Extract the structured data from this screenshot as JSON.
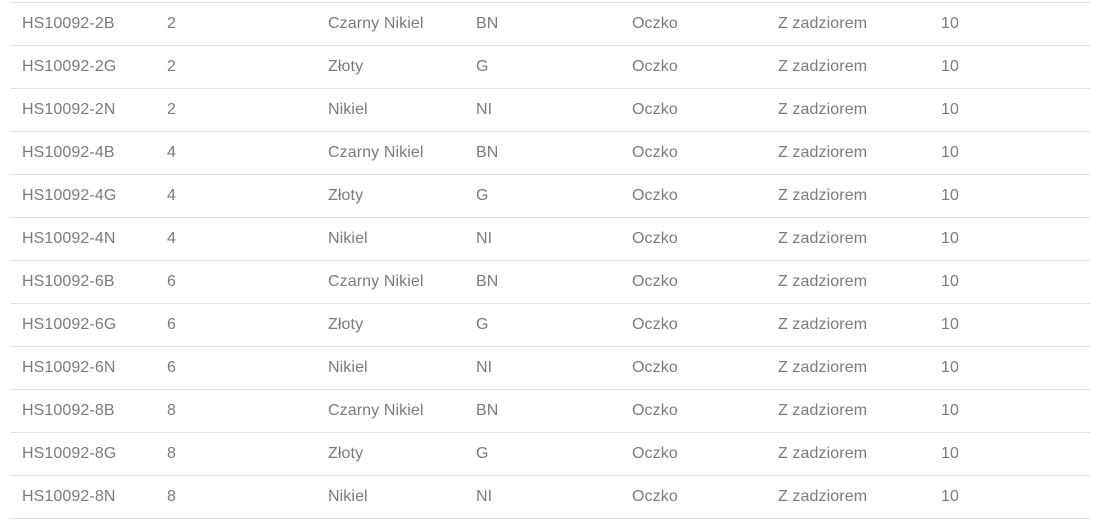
{
  "style": {
    "text_color": "#7b7b7b",
    "border_color": "#e0e0e0",
    "background": "#ffffff"
  },
  "table": {
    "column_keys": [
      "symbol",
      "size",
      "color_name",
      "color_code",
      "shape",
      "barb",
      "quantity"
    ],
    "rows": [
      {
        "symbol": "HS10092-2B",
        "size": "2",
        "color_name": "Czarny Nikiel",
        "color_code": "BN",
        "shape": "Oczko",
        "barb": "Z zadziorem",
        "quantity": "10"
      },
      {
        "symbol": "HS10092-2G",
        "size": "2",
        "color_name": "Złoty",
        "color_code": "G",
        "shape": "Oczko",
        "barb": "Z zadziorem",
        "quantity": "10"
      },
      {
        "symbol": "HS10092-2N",
        "size": "2",
        "color_name": "Nikiel",
        "color_code": "NI",
        "shape": "Oczko",
        "barb": "Z zadziorem",
        "quantity": "10"
      },
      {
        "symbol": "HS10092-4B",
        "size": "4",
        "color_name": "Czarny Nikiel",
        "color_code": "BN",
        "shape": "Oczko",
        "barb": "Z zadziorem",
        "quantity": "10"
      },
      {
        "symbol": "HS10092-4G",
        "size": "4",
        "color_name": "Złoty",
        "color_code": "G",
        "shape": "Oczko",
        "barb": "Z zadziorem",
        "quantity": "10"
      },
      {
        "symbol": "HS10092-4N",
        "size": "4",
        "color_name": "Nikiel",
        "color_code": "NI",
        "shape": "Oczko",
        "barb": "Z zadziorem",
        "quantity": "10"
      },
      {
        "symbol": "HS10092-6B",
        "size": "6",
        "color_name": "Czarny Nikiel",
        "color_code": "BN",
        "shape": "Oczko",
        "barb": "Z zadziorem",
        "quantity": "10"
      },
      {
        "symbol": "HS10092-6G",
        "size": "6",
        "color_name": "Złoty",
        "color_code": "G",
        "shape": "Oczko",
        "barb": "Z zadziorem",
        "quantity": "10"
      },
      {
        "symbol": "HS10092-6N",
        "size": "6",
        "color_name": "Nikiel",
        "color_code": "NI",
        "shape": "Oczko",
        "barb": "Z zadziorem",
        "quantity": "10"
      },
      {
        "symbol": "HS10092-8B",
        "size": "8",
        "color_name": "Czarny Nikiel",
        "color_code": "BN",
        "shape": "Oczko",
        "barb": "Z zadziorem",
        "quantity": "10"
      },
      {
        "symbol": "HS10092-8G",
        "size": "8",
        "color_name": "Złoty",
        "color_code": "G",
        "shape": "Oczko",
        "barb": "Z zadziorem",
        "quantity": "10"
      },
      {
        "symbol": "HS10092-8N",
        "size": "8",
        "color_name": "Nikiel",
        "color_code": "NI",
        "shape": "Oczko",
        "barb": "Z zadziorem",
        "quantity": "10"
      }
    ]
  }
}
